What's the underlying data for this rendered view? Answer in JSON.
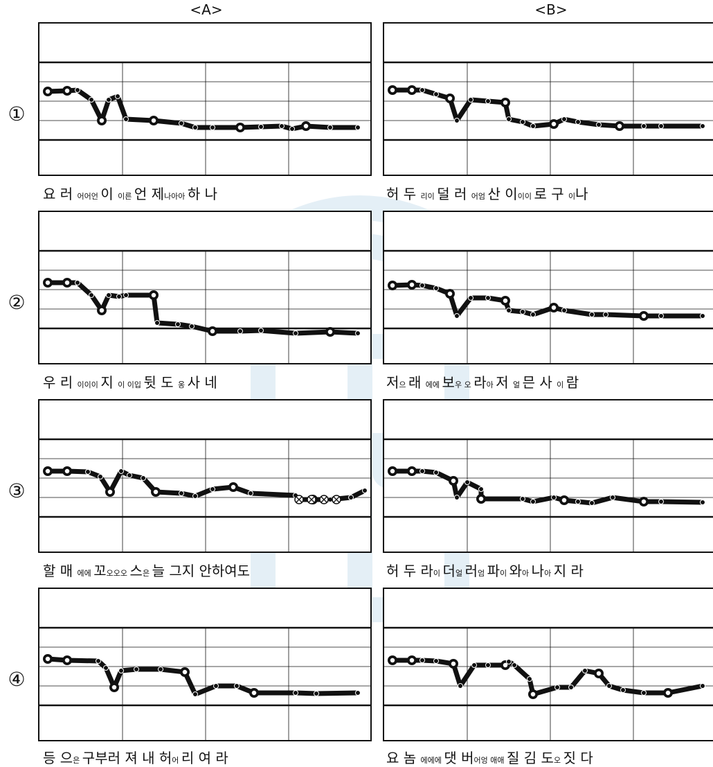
{
  "headers": {
    "a": "<A>",
    "b": "<B>"
  },
  "watermark_text": "KNUE",
  "rows": [
    {
      "num": "①",
      "a_caption": [
        {
          "t": "요 러 ",
          "s": false
        },
        {
          "t": "어어언 ",
          "s": true
        },
        {
          "t": " 이 ",
          "s": false
        },
        {
          "t": "   이른 ",
          "s": true
        },
        {
          "t": " 언 제",
          "s": false
        },
        {
          "t": "나아아 ",
          "s": true
        },
        {
          "t": " 하    나",
          "s": false
        }
      ],
      "b_caption": [
        {
          "t": "허 두 ",
          "s": false
        },
        {
          "t": "리이 ",
          "s": true
        },
        {
          "t": " 덜 러 ",
          "s": false
        },
        {
          "t": "어엄 ",
          "s": true
        },
        {
          "t": " 산 이",
          "s": false
        },
        {
          "t": "이이 ",
          "s": true
        },
        {
          "t": " 로  구  ",
          "s": false
        },
        {
          "t": "  이",
          "s": true
        },
        {
          "t": "나",
          "s": false
        }
      ]
    },
    {
      "num": "②",
      "a_caption": [
        {
          "t": "우 리 ",
          "s": false
        },
        {
          "t": "이이이 ",
          "s": true
        },
        {
          "t": " 지 ",
          "s": false
        },
        {
          "t": "이  이입 ",
          "s": true
        },
        {
          "t": "  뒷 도 ",
          "s": false
        },
        {
          "t": "  옹 ",
          "s": true
        },
        {
          "t": " 사    네",
          "s": false
        }
      ],
      "b_caption": [
        {
          "t": "저",
          "s": false
        },
        {
          "t": "으 ",
          "s": true
        },
        {
          "t": "래 ",
          "s": false
        },
        {
          "t": "에에 ",
          "s": true
        },
        {
          "t": " 보",
          "s": false
        },
        {
          "t": "우 오 ",
          "s": true
        },
        {
          "t": "라",
          "s": false
        },
        {
          "t": "아 ",
          "s": true
        },
        {
          "t": "  저  ",
          "s": false
        },
        {
          "t": " 얼 ",
          "s": true
        },
        {
          "t": " 믄  사 ",
          "s": false
        },
        {
          "t": "이 ",
          "s": true
        },
        {
          "t": "  람",
          "s": false
        }
      ]
    },
    {
      "num": "③",
      "a_caption": [
        {
          "t": "할 매 ",
          "s": false
        },
        {
          "t": "에에 ",
          "s": true
        },
        {
          "t": " 꼬",
          "s": false
        },
        {
          "t": "오오오 ",
          "s": true
        },
        {
          "t": "스",
          "s": false
        },
        {
          "t": "은 ",
          "s": true
        },
        {
          "t": " 늘 그지      안하여도",
          "s": false
        }
      ],
      "b_caption": [
        {
          "t": "허 두  ",
          "s": false
        },
        {
          "t": "라",
          "s": false
        },
        {
          "t": "이 ",
          "s": true
        },
        {
          "t": "  더",
          "s": false
        },
        {
          "t": "얼 ",
          "s": true
        },
        {
          "t": " 러",
          "s": false
        },
        {
          "t": "엄 ",
          "s": true
        },
        {
          "t": "  파",
          "s": false
        },
        {
          "t": "이 ",
          "s": true
        },
        {
          "t": "와",
          "s": false
        },
        {
          "t": "아 ",
          "s": true
        },
        {
          "t": "나",
          "s": false
        },
        {
          "t": "아 ",
          "s": true
        },
        {
          "t": "  지     라",
          "s": false
        }
      ]
    },
    {
      "num": "④",
      "a_caption": [
        {
          "t": "등    ",
          "s": false
        },
        {
          "t": "으",
          "s": false
        },
        {
          "t": "은 ",
          "s": true
        },
        {
          "t": "  구부러 져  내  허",
          "s": false
        },
        {
          "t": "어 ",
          "s": true
        },
        {
          "t": "리  여     라",
          "s": false
        }
      ],
      "b_caption": [
        {
          "t": "요 놈 ",
          "s": false
        },
        {
          "t": "에에에 ",
          "s": true
        },
        {
          "t": " 댓 버",
          "s": false
        },
        {
          "t": "어엉 애애 ",
          "s": true
        },
        {
          "t": " 질 김 도",
          "s": false
        },
        {
          "t": "오 ",
          "s": true
        },
        {
          "t": "  짓     다",
          "s": false
        }
      ]
    }
  ],
  "curves": {
    "a": [
      [
        [
          12,
          98
        ],
        [
          40,
          97
        ],
        [
          55,
          96
        ],
        [
          75,
          110
        ],
        [
          90,
          140
        ],
        [
          100,
          110
        ],
        [
          113,
          105
        ],
        [
          125,
          138
        ],
        [
          165,
          140
        ],
        [
          205,
          144
        ],
        [
          225,
          150
        ],
        [
          250,
          150
        ],
        [
          290,
          150
        ],
        [
          320,
          149
        ],
        [
          350,
          148
        ],
        [
          365,
          152
        ],
        [
          385,
          148
        ],
        [
          420,
          150
        ],
        [
          460,
          150
        ]
      ],
      [
        [
          12,
          102
        ],
        [
          40,
          102
        ],
        [
          55,
          102
        ],
        [
          75,
          120
        ],
        [
          90,
          142
        ],
        [
          100,
          120
        ],
        [
          115,
          122
        ],
        [
          125,
          120
        ],
        [
          165,
          120
        ],
        [
          170,
          160
        ],
        [
          200,
          162
        ],
        [
          220,
          165
        ],
        [
          250,
          172
        ],
        [
          290,
          172
        ],
        [
          320,
          171
        ],
        [
          370,
          175
        ],
        [
          420,
          173
        ],
        [
          460,
          175
        ]
      ],
      [
        [
          12,
          102
        ],
        [
          40,
          102
        ],
        [
          70,
          103
        ],
        [
          88,
          110
        ],
        [
          102,
          132
        ],
        [
          118,
          102
        ],
        [
          130,
          108
        ],
        [
          150,
          112
        ],
        [
          168,
          132
        ],
        [
          205,
          134
        ],
        [
          225,
          138
        ],
        [
          250,
          128
        ],
        [
          280,
          125
        ],
        [
          305,
          134
        ],
        [
          370,
          137
        ],
        [
          375,
          143
        ],
        [
          395,
          143
        ],
        [
          420,
          143
        ],
        [
          450,
          140
        ],
        [
          470,
          130
        ]
      ],
      [
        [
          12,
          101
        ],
        [
          40,
          103
        ],
        [
          85,
          104
        ],
        [
          96,
          114
        ],
        [
          108,
          142
        ],
        [
          118,
          118
        ],
        [
          140,
          116
        ],
        [
          175,
          116
        ],
        [
          210,
          120
        ],
        [
          225,
          152
        ],
        [
          255,
          140
        ],
        [
          285,
          140
        ],
        [
          310,
          150
        ],
        [
          370,
          150
        ],
        [
          400,
          151
        ],
        [
          460,
          150
        ]
      ]
    ],
    "b": [
      [
        [
          12,
          96
        ],
        [
          40,
          96
        ],
        [
          55,
          96
        ],
        [
          75,
          102
        ],
        [
          95,
          108
        ],
        [
          105,
          140
        ],
        [
          125,
          110
        ],
        [
          150,
          112
        ],
        [
          175,
          114
        ],
        [
          180,
          138
        ],
        [
          200,
          142
        ],
        [
          215,
          148
        ],
        [
          245,
          145
        ],
        [
          260,
          138
        ],
        [
          280,
          142
        ],
        [
          310,
          146
        ],
        [
          340,
          148
        ],
        [
          375,
          148
        ],
        [
          400,
          148
        ],
        [
          460,
          148
        ]
      ],
      [
        [
          12,
          106
        ],
        [
          40,
          105
        ],
        [
          55,
          106
        ],
        [
          75,
          110
        ],
        [
          95,
          118
        ],
        [
          105,
          150
        ],
        [
          125,
          124
        ],
        [
          150,
          124
        ],
        [
          175,
          128
        ],
        [
          180,
          142
        ],
        [
          200,
          144
        ],
        [
          215,
          148
        ],
        [
          245,
          138
        ],
        [
          260,
          142
        ],
        [
          300,
          148
        ],
        [
          320,
          148
        ],
        [
          375,
          150
        ],
        [
          400,
          150
        ],
        [
          460,
          150
        ]
      ],
      [
        [
          12,
          102
        ],
        [
          40,
          102
        ],
        [
          55,
          102
        ],
        [
          75,
          104
        ],
        [
          100,
          116
        ],
        [
          105,
          140
        ],
        [
          120,
          118
        ],
        [
          140,
          128
        ],
        [
          140,
          142
        ],
        [
          200,
          142
        ],
        [
          215,
          146
        ],
        [
          245,
          140
        ],
        [
          260,
          144
        ],
        [
          280,
          146
        ],
        [
          300,
          148
        ],
        [
          330,
          140
        ],
        [
          375,
          146
        ],
        [
          400,
          146
        ],
        [
          460,
          147
        ]
      ],
      [
        [
          12,
          103
        ],
        [
          40,
          103
        ],
        [
          55,
          103
        ],
        [
          75,
          104
        ],
        [
          100,
          108
        ],
        [
          110,
          140
        ],
        [
          130,
          110
        ],
        [
          150,
          110
        ],
        [
          175,
          110
        ],
        [
          180,
          105
        ],
        [
          188,
          110
        ],
        [
          210,
          130
        ],
        [
          215,
          152
        ],
        [
          250,
          142
        ],
        [
          270,
          142
        ],
        [
          290,
          118
        ],
        [
          310,
          122
        ],
        [
          325,
          140
        ],
        [
          345,
          146
        ],
        [
          375,
          150
        ],
        [
          410,
          150
        ],
        [
          460,
          140
        ]
      ]
    ]
  }
}
